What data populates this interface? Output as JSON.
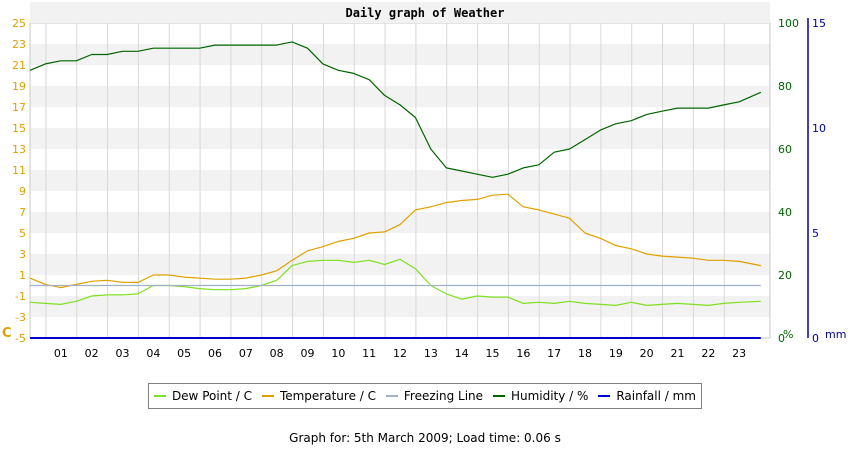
{
  "chart_data": {
    "type": "line",
    "title": "Daily graph of Weather",
    "x_tick_labels": [
      "01",
      "02",
      "03",
      "04",
      "05",
      "06",
      "07",
      "08",
      "09",
      "10",
      "11",
      "12",
      "13",
      "14",
      "15",
      "16",
      "17",
      "18",
      "19",
      "20",
      "21",
      "22",
      "23"
    ],
    "xlim": [
      0,
      24
    ],
    "axes": {
      "celsius": {
        "ylim": [
          -5,
          25
        ],
        "ticks": [
          "25",
          "23",
          "21",
          "19",
          "17",
          "15",
          "13",
          "11",
          "9",
          "7",
          "5",
          "3",
          "1",
          "-1",
          "-3",
          "-5"
        ],
        "unit_label": "C",
        "color": "#e0a000"
      },
      "percent": {
        "ylim": [
          0,
          100
        ],
        "ticks": [
          "100",
          "80",
          "60",
          "40",
          "20",
          "0"
        ],
        "unit_label": "%",
        "color": "#006400"
      },
      "mm": {
        "ylim": [
          0,
          15
        ],
        "ticks": [
          "15",
          "10",
          "5",
          "0"
        ],
        "unit_label": "mm",
        "color": "#0000a0"
      }
    },
    "grid": true,
    "legend_position": "bottom",
    "series": [
      {
        "name": "Dew Point / C",
        "axis": "celsius",
        "color": "#7fe01f",
        "x": [
          0,
          0.5,
          1,
          1.5,
          2,
          2.5,
          3,
          3.5,
          4,
          4.5,
          5,
          5.5,
          6,
          6.5,
          7,
          7.5,
          8,
          8.5,
          9,
          9.5,
          10,
          10.5,
          11,
          11.5,
          12,
          12.5,
          13,
          13.5,
          14,
          14.5,
          15,
          15.5,
          16,
          16.5,
          17,
          17.5,
          18,
          18.5,
          19,
          19.5,
          20,
          20.5,
          21,
          21.5,
          22,
          22.5,
          23,
          23.7
        ],
        "y": [
          -1.6,
          -1.7,
          -1.8,
          -1.5,
          -1.0,
          -0.9,
          -0.9,
          -0.8,
          0.0,
          0.0,
          -0.1,
          -0.3,
          -0.4,
          -0.4,
          -0.3,
          0.0,
          0.5,
          1.9,
          2.3,
          2.4,
          2.4,
          2.2,
          2.4,
          2.0,
          2.5,
          1.6,
          0.0,
          -0.8,
          -1.3,
          -1.0,
          -1.1,
          -1.1,
          -1.7,
          -1.6,
          -1.7,
          -1.5,
          -1.7,
          -1.8,
          -1.9,
          -1.6,
          -1.9,
          -1.8,
          -1.7,
          -1.8,
          -1.9,
          -1.7,
          -1.6,
          -1.5
        ]
      },
      {
        "name": "Temperature / C",
        "axis": "celsius",
        "color": "#e0a000",
        "x": [
          0,
          0.5,
          1,
          1.5,
          2,
          2.5,
          3,
          3.5,
          4,
          4.5,
          5,
          5.5,
          6,
          6.5,
          7,
          7.5,
          8,
          8.5,
          9,
          9.5,
          10,
          10.5,
          11,
          11.5,
          12,
          12.5,
          13,
          13.5,
          14,
          14.5,
          15,
          15.5,
          16,
          16.5,
          17,
          17.5,
          18,
          18.5,
          19,
          19.5,
          20,
          20.5,
          21,
          21.5,
          22,
          22.5,
          23,
          23.7
        ],
        "y": [
          0.7,
          0.1,
          -0.2,
          0.1,
          0.4,
          0.5,
          0.3,
          0.3,
          1.0,
          1.0,
          0.8,
          0.7,
          0.6,
          0.6,
          0.7,
          1.0,
          1.4,
          2.4,
          3.3,
          3.7,
          4.2,
          4.5,
          5.0,
          5.1,
          5.8,
          7.2,
          7.5,
          7.9,
          8.1,
          8.2,
          8.6,
          8.7,
          7.5,
          7.2,
          6.8,
          6.4,
          5.0,
          4.5,
          3.8,
          3.5,
          3.0,
          2.8,
          2.7,
          2.6,
          2.4,
          2.4,
          2.3,
          1.9
        ]
      },
      {
        "name": "Freezing Line",
        "axis": "celsius",
        "color": "#a0b0c8",
        "x": [
          0,
          23.7
        ],
        "y": [
          0,
          0
        ]
      },
      {
        "name": "Humidity / %",
        "axis": "percent",
        "color": "#006400",
        "x": [
          0,
          0.5,
          1,
          1.5,
          2,
          2.5,
          3,
          3.5,
          4,
          4.5,
          5,
          5.5,
          6,
          6.5,
          7,
          7.5,
          8,
          8.5,
          9,
          9.5,
          10,
          10.5,
          11,
          11.5,
          12,
          12.5,
          13,
          13.5,
          14,
          14.5,
          15,
          15.5,
          16,
          16.5,
          17,
          17.5,
          18,
          18.5,
          19,
          19.5,
          20,
          20.5,
          21,
          21.5,
          22,
          22.5,
          23,
          23.7
        ],
        "y": [
          85,
          87,
          88,
          88,
          90,
          90,
          91,
          91,
          92,
          92,
          92,
          92,
          93,
          93,
          93,
          93,
          93,
          94,
          92,
          87,
          85,
          84,
          82,
          77,
          74,
          70,
          60,
          54,
          53,
          52,
          51,
          52,
          54,
          55,
          59,
          60,
          63,
          66,
          68,
          69,
          71,
          72,
          73,
          73,
          73,
          74,
          75,
          78
        ]
      },
      {
        "name": "Rainfall / mm",
        "axis": "mm",
        "color": "#0000cc",
        "x": [
          0,
          23.7
        ],
        "y": [
          0,
          0
        ]
      }
    ]
  },
  "footer": {
    "text": "Graph for: 5th March 2009; Load time: 0.06 s"
  }
}
